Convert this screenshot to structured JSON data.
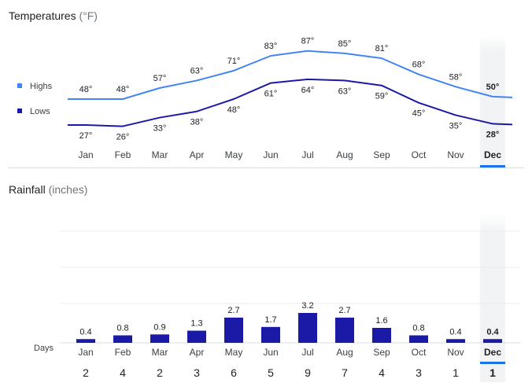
{
  "temperature": {
    "title": "Temperatures",
    "unit": "(°F)",
    "legend": {
      "highs": "Highs",
      "lows": "Lows"
    },
    "colors": {
      "highs": "#4285f4",
      "lows": "#1a1aa6"
    }
  },
  "rainfall": {
    "title": "Rainfall",
    "unit": "(inches)",
    "days_label": "Days",
    "bar_color": "#1a1aa6"
  },
  "selected_month": "Dec",
  "chart_data": [
    {
      "type": "line",
      "title": "Temperatures (°F)",
      "categories": [
        "Jan",
        "Feb",
        "Mar",
        "Apr",
        "May",
        "Jun",
        "Jul",
        "Aug",
        "Sep",
        "Oct",
        "Nov",
        "Dec"
      ],
      "series": [
        {
          "name": "Highs",
          "values": [
            48,
            48,
            57,
            63,
            71,
            83,
            87,
            85,
            81,
            68,
            58,
            50
          ],
          "labels": [
            "48°",
            "48°",
            "57°",
            "63°",
            "71°",
            "83°",
            "87°",
            "85°",
            "81°",
            "68°",
            "58°",
            "50°"
          ]
        },
        {
          "name": "Lows",
          "values": [
            27,
            26,
            33,
            38,
            48,
            61,
            64,
            63,
            59,
            45,
            35,
            28
          ],
          "labels": [
            "27°",
            "26°",
            "33°",
            "38°",
            "48°",
            "61°",
            "64°",
            "63°",
            "59°",
            "45°",
            "35°",
            "28°"
          ]
        }
      ],
      "legend": "left"
    },
    {
      "type": "bar",
      "title": "Rainfall (inches)",
      "categories": [
        "Jan",
        "Feb",
        "Mar",
        "Apr",
        "May",
        "Jun",
        "Jul",
        "Aug",
        "Sep",
        "Oct",
        "Nov",
        "Dec"
      ],
      "values": [
        0.4,
        0.8,
        0.9,
        1.3,
        2.7,
        1.7,
        3.2,
        2.7,
        1.6,
        0.8,
        0.4,
        0.4
      ],
      "value_labels": [
        "0.4",
        "0.8",
        "0.9",
        "1.3",
        "2.7",
        "1.7",
        "3.2",
        "2.7",
        "1.6",
        "0.8",
        "0.4",
        "0.4"
      ],
      "days": [
        "2",
        "4",
        "2",
        "3",
        "6",
        "5",
        "9",
        "7",
        "4",
        "3",
        "1",
        "1"
      ]
    }
  ]
}
